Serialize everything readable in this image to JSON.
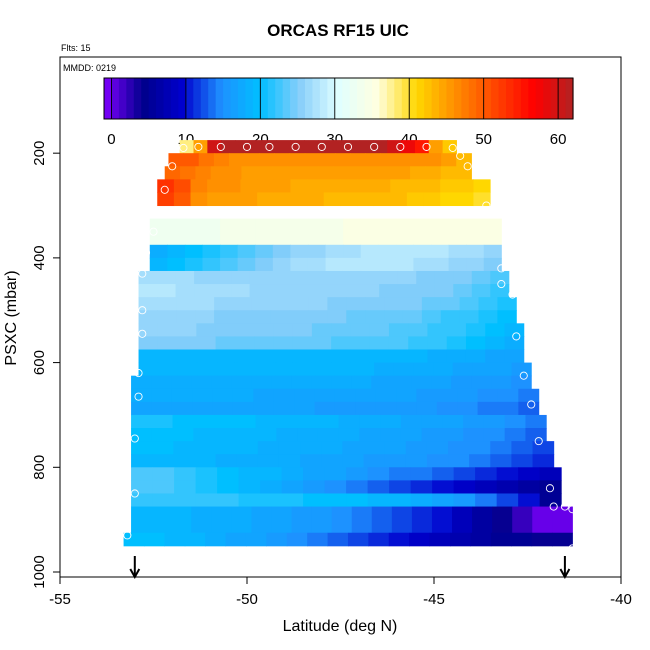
{
  "chart_data": {
    "type": "heatmap",
    "title": "ORCAS RF15 UIC",
    "annotations": {
      "flts": "Flts: 15",
      "mmdd": "MMDD: 0219"
    },
    "xlabel": "Latitude (deg N)",
    "ylabel": "PSXC (mbar)",
    "xlim": [
      -55,
      -40
    ],
    "ylim": [
      1000,
      0
    ],
    "x_ticks": [
      -55,
      -50,
      -45,
      -40
    ],
    "y_ticks": [
      200,
      400,
      600,
      800,
      1000
    ],
    "colorbar": {
      "range": [
        -1,
        62
      ],
      "ticks": [
        0,
        10,
        20,
        30,
        40,
        50,
        60
      ],
      "palette": [
        "#7F00FF",
        "#00008B",
        "#0000CD",
        "#1E90FF",
        "#00BFFF",
        "#87CEFA",
        "#E0FFFF",
        "#FFFFE0",
        "#FFD700",
        "#FF8C00",
        "#FF4500",
        "#FF0000",
        "#B22222"
      ]
    },
    "pressure_bands": [
      {
        "p": [
          175,
          200
        ],
        "lat": [
          -51.8,
          -44.4
        ],
        "values": [
          38,
          45,
          60,
          62,
          62,
          62,
          62,
          62,
          62,
          62,
          62,
          62,
          62,
          62,
          62,
          60,
          58,
          55,
          45,
          42
        ]
      },
      {
        "p": [
          200,
          225
        ],
        "lat": [
          -52.1,
          -44.0
        ],
        "values": [
          50,
          50,
          48,
          47,
          46,
          46,
          46,
          46,
          46,
          46,
          46,
          46,
          46,
          46,
          46,
          46,
          46,
          46,
          45,
          43
        ]
      },
      {
        "p": [
          225,
          250
        ],
        "lat": [
          -52.2,
          -44.0
        ],
        "values": [
          49,
          48,
          47,
          46,
          46,
          45,
          45,
          45,
          45,
          45,
          45,
          45,
          45,
          45,
          45,
          45,
          44,
          44,
          43,
          43
        ]
      },
      {
        "p": [
          250,
          275
        ],
        "lat": [
          -52.4,
          -43.5
        ],
        "values": [
          53,
          51,
          47,
          46,
          46,
          45,
          45,
          45,
          44,
          44,
          44,
          44,
          44,
          44,
          43,
          43,
          43,
          42,
          42,
          41
        ]
      },
      {
        "p": [
          275,
          300
        ],
        "lat": [
          -52.4,
          -43.5
        ],
        "values": [
          52,
          50,
          46,
          45,
          45,
          45,
          44,
          44,
          44,
          44,
          43,
          43,
          43,
          43,
          43,
          42,
          42,
          41,
          41,
          40
        ]
      },
      {
        "p": [
          325,
          375
        ],
        "lat": [
          -52.6,
          -43.2
        ],
        "values": [
          33,
          33,
          33,
          33,
          34,
          34,
          34,
          34,
          34,
          34,
          34,
          35,
          35,
          35,
          35,
          35,
          35,
          35,
          35,
          35
        ]
      },
      {
        "p": [
          375,
          400
        ],
        "lat": [
          -52.6,
          -43.2
        ],
        "values": [
          18,
          19,
          20,
          21,
          22,
          23,
          24,
          25,
          26,
          26,
          27,
          27,
          28,
          28,
          28,
          28,
          28,
          27,
          27,
          26
        ]
      },
      {
        "p": [
          400,
          425
        ],
        "lat": [
          -52.6,
          -43.2
        ],
        "values": [
          19,
          20,
          21,
          22,
          23,
          24,
          25,
          26,
          27,
          27,
          28,
          28,
          28,
          28,
          28,
          27,
          27,
          26,
          26,
          25
        ]
      },
      {
        "p": [
          425,
          450
        ],
        "lat": [
          -52.9,
          -43.0
        ],
        "values": [
          27,
          27,
          27,
          26,
          26,
          26,
          26,
          26,
          26,
          26,
          26,
          26,
          26,
          26,
          26,
          25,
          25,
          25,
          24,
          23
        ]
      },
      {
        "p": [
          450,
          475
        ],
        "lat": [
          -52.9,
          -43.0
        ],
        "values": [
          28,
          28,
          27,
          27,
          27,
          27,
          26,
          26,
          26,
          26,
          26,
          26,
          26,
          25,
          25,
          25,
          25,
          24,
          23,
          22
        ]
      },
      {
        "p": [
          475,
          500
        ],
        "lat": [
          -52.9,
          -42.8
        ],
        "values": [
          27,
          27,
          27,
          27,
          26,
          26,
          26,
          26,
          26,
          26,
          25,
          25,
          25,
          25,
          25,
          24,
          24,
          23,
          22,
          21
        ]
      },
      {
        "p": [
          500,
          525
        ],
        "lat": [
          -52.9,
          -42.8
        ],
        "values": [
          26,
          26,
          26,
          26,
          25,
          25,
          25,
          25,
          25,
          25,
          25,
          24,
          24,
          24,
          24,
          23,
          22,
          22,
          21,
          20
        ]
      },
      {
        "p": [
          525,
          550
        ],
        "lat": [
          -52.9,
          -42.6
        ],
        "values": [
          26,
          26,
          26,
          25,
          25,
          25,
          25,
          25,
          25,
          24,
          24,
          24,
          24,
          23,
          23,
          22,
          22,
          21,
          20,
          19
        ]
      },
      {
        "p": [
          550,
          575
        ],
        "lat": [
          -52.9,
          -42.6
        ],
        "values": [
          25,
          25,
          25,
          25,
          24,
          24,
          24,
          24,
          24,
          24,
          23,
          23,
          23,
          23,
          22,
          22,
          21,
          20,
          19,
          18
        ]
      },
      {
        "p": [
          575,
          600
        ],
        "lat": [
          -52.9,
          -42.6
        ],
        "values": [
          19,
          19,
          19,
          19,
          19,
          19,
          19,
          19,
          19,
          19,
          19,
          19,
          19,
          19,
          19,
          18,
          18,
          18,
          17,
          17
        ]
      },
      {
        "p": [
          600,
          625
        ],
        "lat": [
          -52.9,
          -42.4
        ],
        "values": [
          19,
          19,
          19,
          19,
          19,
          19,
          19,
          19,
          19,
          19,
          19,
          19,
          18,
          18,
          18,
          18,
          17,
          17,
          17,
          16
        ]
      },
      {
        "p": [
          625,
          650
        ],
        "lat": [
          -53.1,
          -42.4
        ],
        "values": [
          18,
          18,
          18,
          18,
          18,
          18,
          18,
          18,
          18,
          18,
          18,
          18,
          17,
          17,
          17,
          17,
          16,
          16,
          16,
          15
        ]
      },
      {
        "p": [
          650,
          675
        ],
        "lat": [
          -53.1,
          -42.2
        ],
        "values": [
          18,
          18,
          18,
          18,
          18,
          18,
          17,
          17,
          17,
          17,
          17,
          17,
          17,
          17,
          16,
          16,
          16,
          15,
          15,
          14
        ]
      },
      {
        "p": [
          675,
          700
        ],
        "lat": [
          -53.1,
          -42.2
        ],
        "values": [
          17,
          17,
          17,
          17,
          17,
          17,
          17,
          17,
          17,
          16,
          16,
          16,
          16,
          16,
          16,
          15,
          15,
          14,
          14,
          13
        ]
      },
      {
        "p": [
          700,
          725
        ],
        "lat": [
          -53.1,
          -42.0
        ],
        "values": [
          21,
          21,
          20,
          20,
          20,
          20,
          19,
          19,
          19,
          19,
          18,
          18,
          18,
          17,
          17,
          17,
          16,
          16,
          15,
          14
        ]
      },
      {
        "p": [
          725,
          750
        ],
        "lat": [
          -53.1,
          -42.0
        ],
        "values": [
          20,
          20,
          20,
          19,
          19,
          19,
          19,
          18,
          18,
          18,
          18,
          17,
          17,
          17,
          16,
          16,
          15,
          15,
          14,
          13
        ]
      },
      {
        "p": [
          750,
          775
        ],
        "lat": [
          -53.1,
          -41.8
        ],
        "values": [
          20,
          20,
          19,
          19,
          19,
          19,
          18,
          18,
          18,
          18,
          17,
          17,
          17,
          16,
          16,
          15,
          15,
          14,
          13,
          12
        ]
      },
      {
        "p": [
          775,
          800
        ],
        "lat": [
          -53.1,
          -41.8
        ],
        "values": [
          19,
          19,
          19,
          19,
          18,
          18,
          18,
          18,
          17,
          17,
          17,
          16,
          16,
          16,
          15,
          15,
          14,
          13,
          12,
          11
        ]
      },
      {
        "p": [
          800,
          825
        ],
        "lat": [
          -53.1,
          -41.6
        ],
        "values": [
          23,
          23,
          22,
          21,
          20,
          19,
          19,
          18,
          17,
          17,
          16,
          15,
          14,
          14,
          13,
          12,
          11,
          10,
          9,
          8
        ]
      },
      {
        "p": [
          825,
          850
        ],
        "lat": [
          -53.1,
          -41.6
        ],
        "values": [
          23,
          23,
          22,
          21,
          20,
          19,
          18,
          17,
          16,
          15,
          14,
          13,
          12,
          11,
          10,
          9,
          8,
          7,
          6,
          5
        ]
      },
      {
        "p": [
          850,
          875
        ],
        "lat": [
          -53.1,
          -41.6
        ],
        "values": [
          22,
          22,
          22,
          22,
          22,
          21,
          21,
          21,
          20,
          20,
          20,
          19,
          19,
          18,
          17,
          16,
          14,
          12,
          10,
          5
        ]
      },
      {
        "p": [
          875,
          925
        ],
        "lat": [
          -53.1,
          -41.3
        ],
        "values": [
          19,
          19,
          19,
          18,
          18,
          18,
          17,
          17,
          16,
          16,
          15,
          14,
          13,
          12,
          11,
          10,
          8,
          6,
          4,
          2,
          0,
          0
        ]
      },
      {
        "p": [
          925,
          950
        ],
        "lat": [
          -53.3,
          -41.3
        ],
        "values": [
          20,
          20,
          19,
          19,
          18,
          17,
          17,
          16,
          15,
          14,
          13,
          12,
          11,
          10,
          9,
          8,
          7,
          6,
          5,
          5,
          4,
          4
        ]
      }
    ],
    "markers": [
      [
        -51.7,
        190
      ],
      [
        -51.3,
        188
      ],
      [
        -50.7,
        188
      ],
      [
        -50.0,
        188
      ],
      [
        -49.4,
        188
      ],
      [
        -48.7,
        188
      ],
      [
        -48.0,
        188
      ],
      [
        -47.3,
        188
      ],
      [
        -46.6,
        188
      ],
      [
        -45.9,
        188
      ],
      [
        -45.2,
        188
      ],
      [
        -44.5,
        190
      ],
      [
        -44.3,
        205
      ],
      [
        -52.0,
        225
      ],
      [
        -44.1,
        225
      ],
      [
        -52.2,
        270
      ],
      [
        -43.6,
        300
      ],
      [
        -52.5,
        350
      ],
      [
        -52.7,
        390
      ],
      [
        -43.2,
        420
      ],
      [
        -52.8,
        430
      ],
      [
        -43.2,
        450
      ],
      [
        -52.8,
        500
      ],
      [
        -42.9,
        470
      ],
      [
        -52.8,
        545
      ],
      [
        -42.8,
        550
      ],
      [
        -52.9,
        620
      ],
      [
        -42.6,
        625
      ],
      [
        -52.9,
        665
      ],
      [
        -42.4,
        680
      ],
      [
        -53.0,
        745
      ],
      [
        -42.2,
        750
      ],
      [
        -53.0,
        850
      ],
      [
        -41.9,
        840
      ],
      [
        -41.8,
        875
      ],
      [
        -41.5,
        875
      ],
      [
        -41.3,
        880
      ],
      [
        -53.2,
        930
      ],
      [
        -41.3,
        955
      ]
    ],
    "markers_legend": "open circles mark flight sample locations",
    "arrows_lat": [
      -53.0,
      -41.5
    ]
  }
}
